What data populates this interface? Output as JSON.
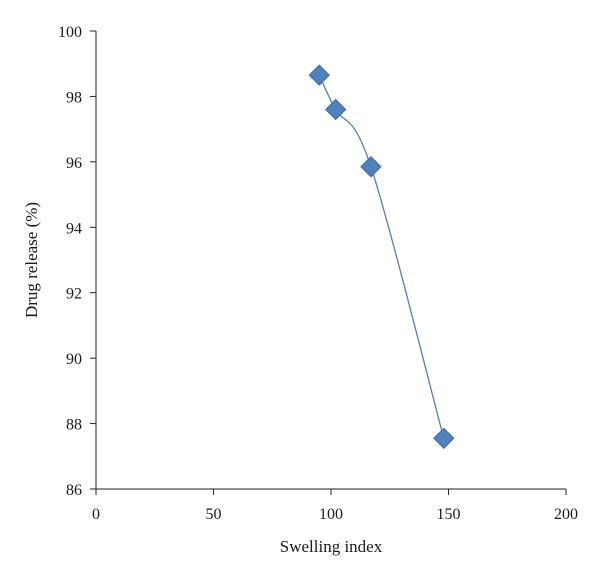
{
  "chart_data": {
    "type": "scatter",
    "title": "",
    "xlabel": "Swelling index",
    "ylabel": "Drug release (%)",
    "xlim": [
      0,
      200
    ],
    "ylim": [
      86,
      100
    ],
    "xticks": [
      0,
      50,
      100,
      150,
      200
    ],
    "yticks": [
      86,
      88,
      90,
      92,
      94,
      96,
      98,
      100
    ],
    "grid": false,
    "legend": "none",
    "marker": "diamond",
    "smooth_line": true,
    "colors": {
      "marker": "#4f81bd",
      "marker_edge": "#3d6aa3",
      "line": "#4f81bd",
      "axis": "#222222"
    },
    "series": [
      {
        "x": [
          95,
          102,
          117,
          148
        ],
        "y": [
          98.65,
          97.6,
          95.85,
          87.55
        ]
      }
    ]
  }
}
